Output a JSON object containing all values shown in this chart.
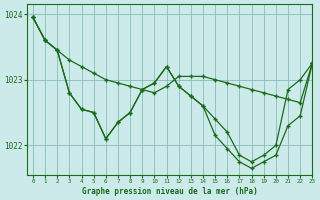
{
  "title": "Graphe pression niveau de la mer (hPa)",
  "bg_color": "#cceaea",
  "plot_bg_color": "#cceaea",
  "line_color": "#1a6b1a",
  "grid_color": "#88bbbb",
  "xlim": [
    -0.5,
    23
  ],
  "ylim": [
    1021.55,
    1024.15
  ],
  "yticks": [
    1022,
    1023,
    1024
  ],
  "xticks": [
    0,
    1,
    2,
    3,
    4,
    5,
    6,
    7,
    8,
    9,
    10,
    11,
    12,
    13,
    14,
    15,
    16,
    17,
    18,
    19,
    20,
    21,
    22,
    23
  ],
  "series": [
    {
      "x": [
        0,
        1,
        2,
        3,
        4,
        5,
        6,
        7,
        8,
        9,
        10,
        11,
        12,
        13,
        14,
        15,
        16,
        17,
        18,
        19,
        20,
        21,
        22,
        23
      ],
      "y": [
        1023.95,
        1023.6,
        1023.45,
        1023.3,
        1023.2,
        1023.1,
        1023.0,
        1022.95,
        1022.9,
        1022.85,
        1022.8,
        1022.9,
        1023.05,
        1023.05,
        1023.05,
        1023.0,
        1022.95,
        1022.9,
        1022.85,
        1022.8,
        1022.75,
        1022.7,
        1022.65,
        1023.25
      ]
    },
    {
      "x": [
        0,
        1,
        2,
        3,
        4,
        5,
        6,
        7,
        8,
        9,
        10,
        11,
        12,
        13,
        14,
        15,
        16,
        17,
        18,
        19,
        20,
        21,
        22,
        23
      ],
      "y": [
        1023.95,
        1023.6,
        1023.45,
        1022.8,
        1022.55,
        1022.5,
        1022.1,
        1022.35,
        1022.5,
        1022.85,
        1022.95,
        1023.2,
        1022.9,
        1022.75,
        1022.6,
        1022.4,
        1022.2,
        1021.85,
        1021.75,
        1021.85,
        1022.0,
        1022.85,
        1023.0,
        1023.25
      ]
    },
    {
      "x": [
        0,
        1,
        2,
        3,
        4,
        5,
        6,
        7,
        8,
        9,
        10,
        11,
        12,
        13,
        14,
        15,
        16,
        17,
        18,
        19,
        20,
        21,
        22,
        23
      ],
      "y": [
        1023.95,
        1023.6,
        1023.45,
        1022.8,
        1022.55,
        1022.5,
        1022.1,
        1022.35,
        1022.5,
        1022.85,
        1022.95,
        1023.2,
        1022.9,
        1022.75,
        1022.6,
        1022.15,
        1021.95,
        1021.75,
        1021.65,
        1021.75,
        1021.85,
        1022.3,
        1022.45,
        1023.25
      ]
    }
  ]
}
